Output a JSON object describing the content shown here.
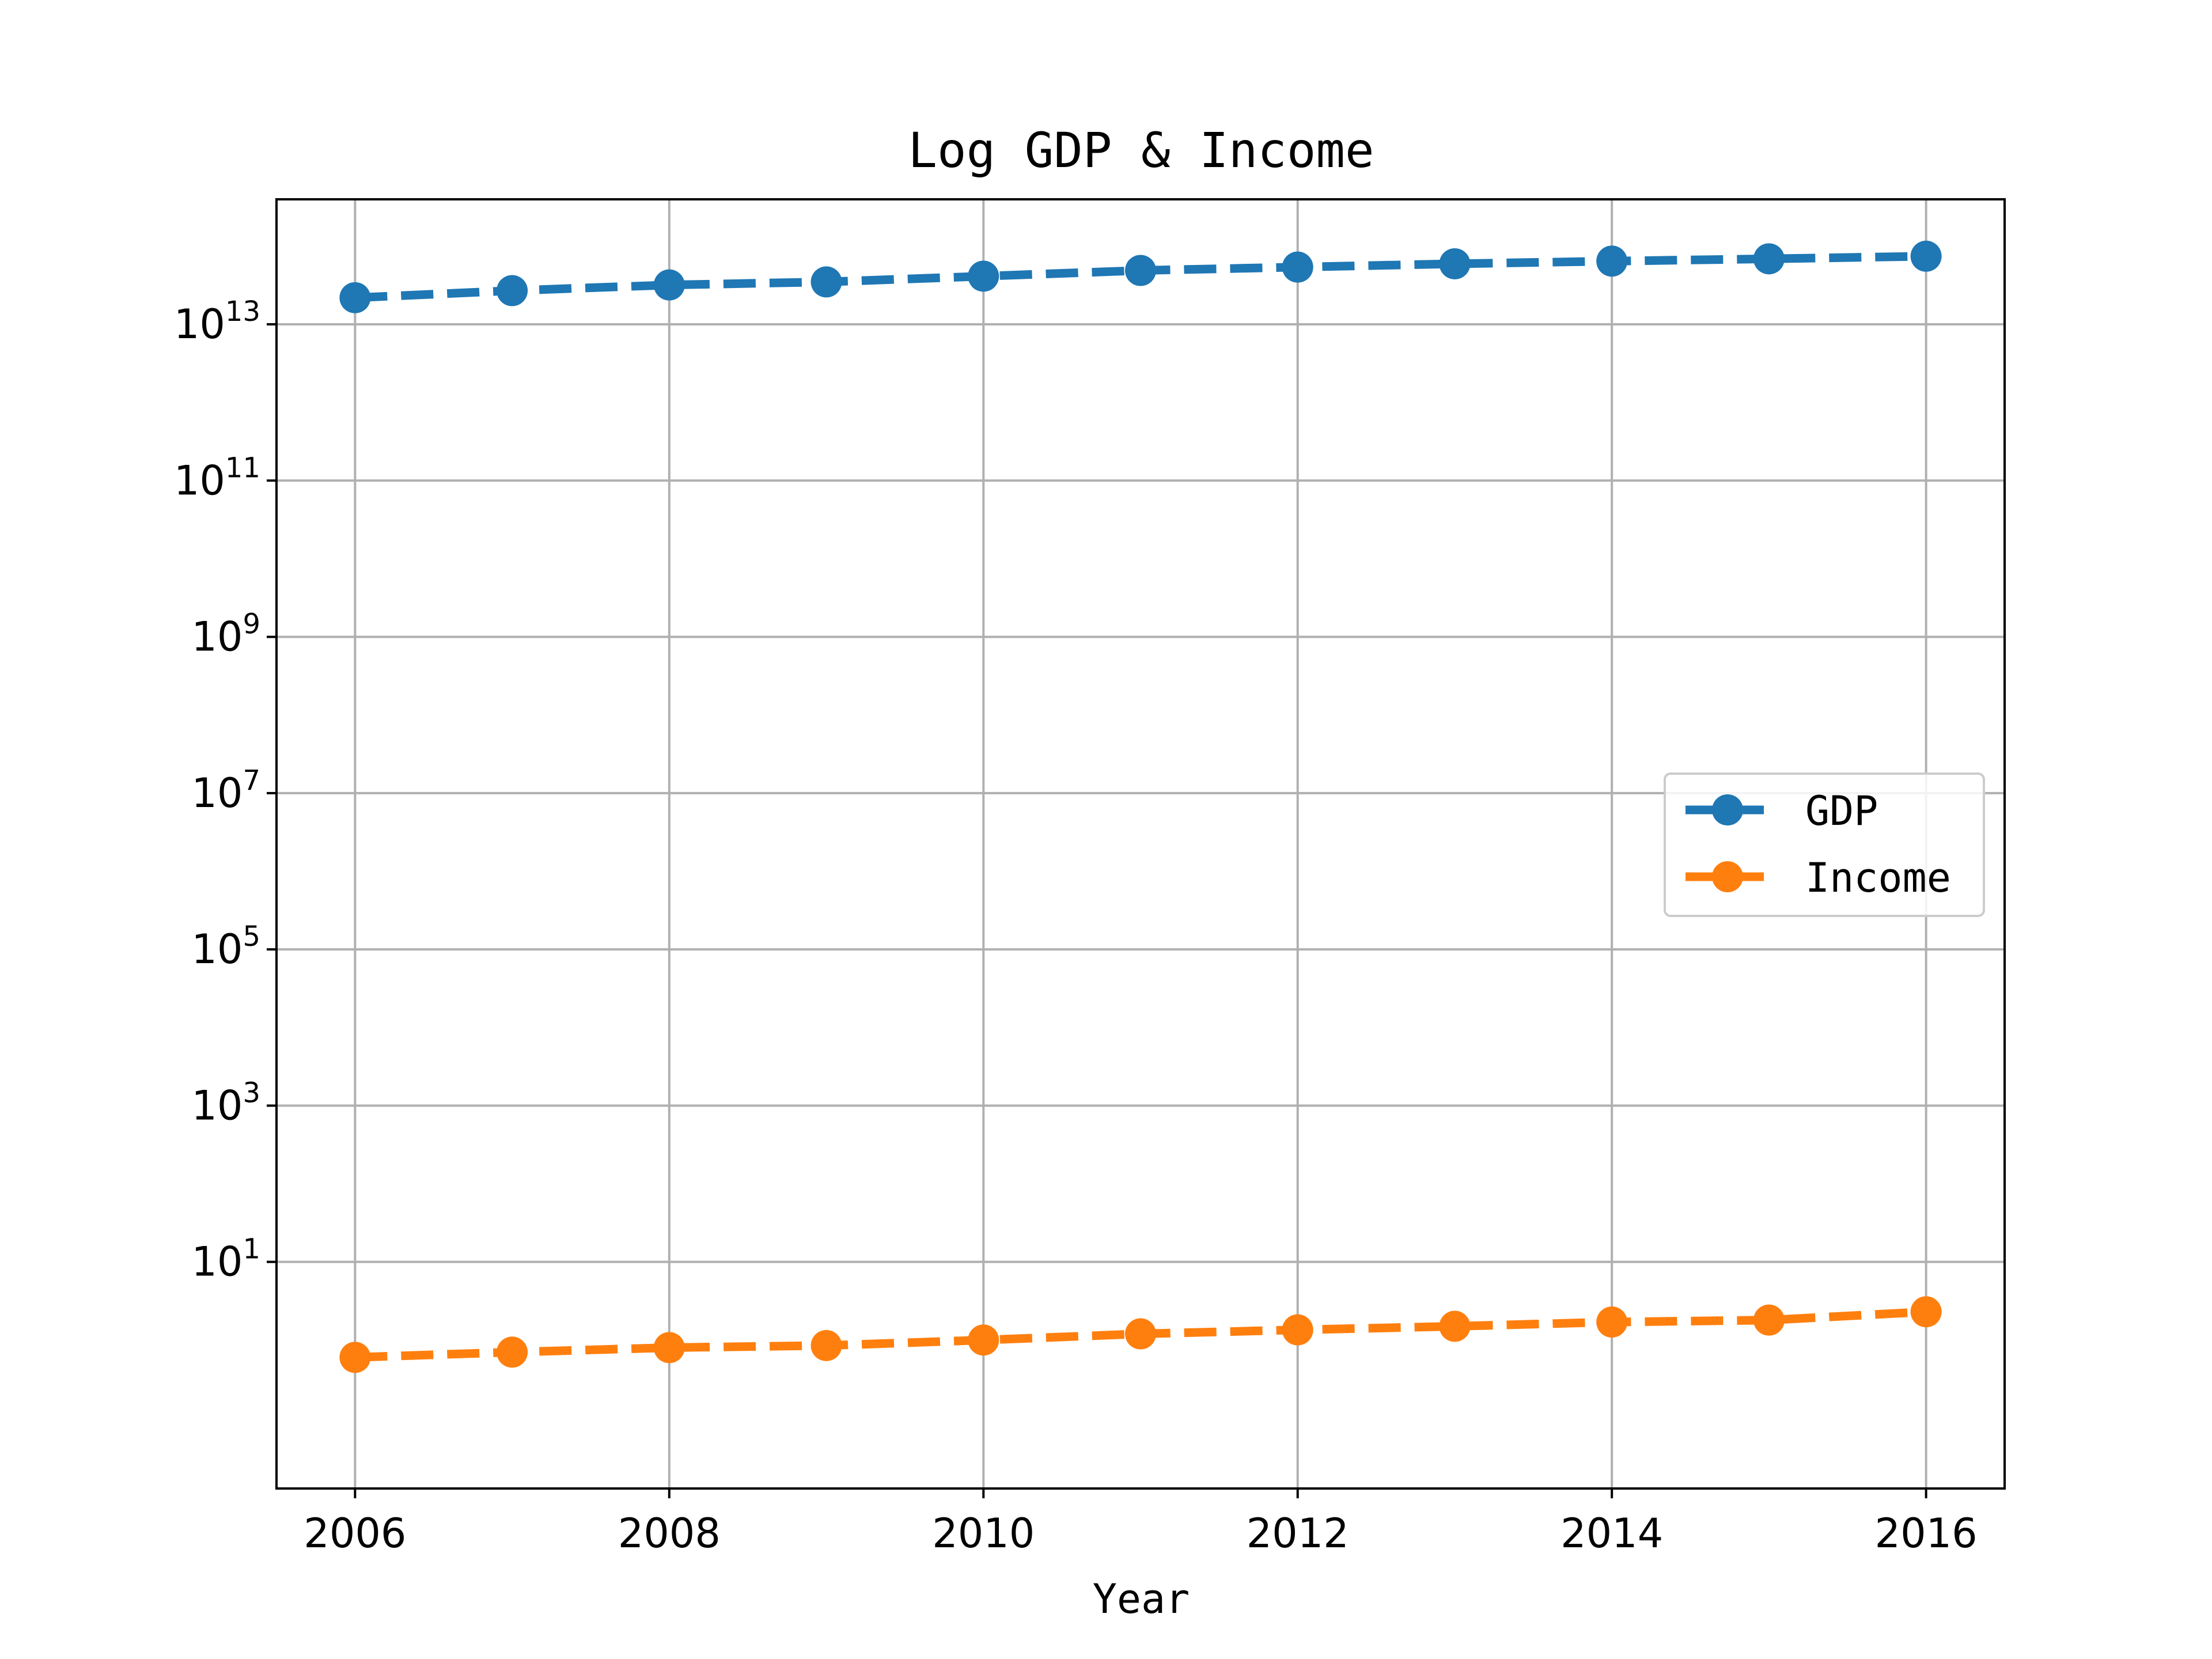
{
  "chart_data": {
    "type": "line",
    "title": "Log GDP & Income",
    "xlabel": "Year",
    "ylabel": "",
    "yscale": "log",
    "grid": true,
    "legend_position": "center-right",
    "xlim": [
      2005.5,
      2016.5
    ],
    "ylim_exponent": [
      -1.9,
      14.6
    ],
    "x_ticks": [
      2006,
      2008,
      2010,
      2012,
      2014,
      2016
    ],
    "x_tick_labels": [
      "2006",
      "2008",
      "2010",
      "2012",
      "2014",
      "2016"
    ],
    "y_ticks": [
      10,
      1000,
      100000,
      10000000,
      1000000000,
      100000000000,
      10000000000000
    ],
    "y_tick_bases": [
      "10",
      "10",
      "10",
      "10",
      "10",
      "10",
      "10"
    ],
    "y_tick_exponents": [
      "1",
      "3",
      "5",
      "7",
      "9",
      "11",
      "13"
    ],
    "x": [
      2006,
      2007,
      2008,
      2009,
      2010,
      2011,
      2012,
      2013,
      2014,
      2015,
      2016
    ],
    "series": [
      {
        "name": "GDP",
        "color": "#1f77b4",
        "values": [
          21900000000000,
          27000000000000,
          31900000000000,
          34900000000000,
          41300000000000,
          48900000000000,
          54000000000000,
          59500000000000,
          64400000000000,
          68900000000000,
          74400000000000
        ]
      },
      {
        "name": "Income",
        "color": "#ff7f0e",
        "values": [
          0.6,
          0.7,
          0.8,
          0.85,
          1.0,
          1.2,
          1.35,
          1.5,
          1.7,
          1.8,
          2.3
        ]
      }
    ]
  }
}
